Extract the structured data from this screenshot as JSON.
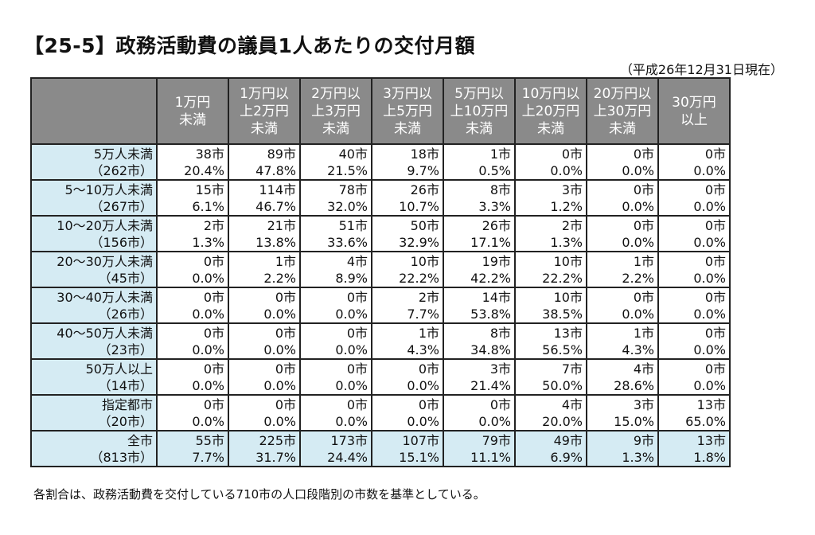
{
  "title": "【25-5】政務活動費の議員1人あたりの交付月額",
  "as_of": "（平成26年12月31日現在）",
  "columns": [
    "1万円\n未満",
    "1万円以\n上2万円\n未満",
    "2万円以\n上3万円\n未満",
    "3万円以\n上5万円\n未満",
    "5万円以\n上10万円\n未満",
    "10万円以\n上20万円\n未満",
    "20万円以\n上30万円\n未満",
    "30万円\n以上"
  ],
  "rows": [
    {
      "label": "5万人未満",
      "sub": "（262市）",
      "counts": [
        "38市",
        "89市",
        "40市",
        "18市",
        "1市",
        "0市",
        "0市",
        "0市"
      ],
      "pcts": [
        "20.4%",
        "47.8%",
        "21.5%",
        "9.7%",
        "0.5%",
        "0.0%",
        "0.0%",
        "0.0%"
      ]
    },
    {
      "label": "5～10万人未満",
      "sub": "（267市）",
      "counts": [
        "15市",
        "114市",
        "78市",
        "26市",
        "8市",
        "3市",
        "0市",
        "0市"
      ],
      "pcts": [
        "6.1%",
        "46.7%",
        "32.0%",
        "10.7%",
        "3.3%",
        "1.2%",
        "0.0%",
        "0.0%"
      ]
    },
    {
      "label": "10～20万人未満",
      "sub": "（156市）",
      "counts": [
        "2市",
        "21市",
        "51市",
        "50市",
        "26市",
        "2市",
        "0市",
        "0市"
      ],
      "pcts": [
        "1.3%",
        "13.8%",
        "33.6%",
        "32.9%",
        "17.1%",
        "1.3%",
        "0.0%",
        "0.0%"
      ]
    },
    {
      "label": "20～30万人未満",
      "sub": "（45市）",
      "counts": [
        "0市",
        "1市",
        "4市",
        "10市",
        "19市",
        "10市",
        "1市",
        "0市"
      ],
      "pcts": [
        "0.0%",
        "2.2%",
        "8.9%",
        "22.2%",
        "42.2%",
        "22.2%",
        "2.2%",
        "0.0%"
      ]
    },
    {
      "label": "30～40万人未満",
      "sub": "（26市）",
      "counts": [
        "0市",
        "0市",
        "0市",
        "2市",
        "14市",
        "10市",
        "0市",
        "0市"
      ],
      "pcts": [
        "0.0%",
        "0.0%",
        "0.0%",
        "7.7%",
        "53.8%",
        "38.5%",
        "0.0%",
        "0.0%"
      ]
    },
    {
      "label": "40～50万人未満",
      "sub": "（23市）",
      "counts": [
        "0市",
        "0市",
        "0市",
        "1市",
        "8市",
        "13市",
        "1市",
        "0市"
      ],
      "pcts": [
        "0.0%",
        "0.0%",
        "0.0%",
        "4.3%",
        "34.8%",
        "56.5%",
        "4.3%",
        "0.0%"
      ]
    },
    {
      "label": "50万人以上",
      "sub": "（14市）",
      "counts": [
        "0市",
        "0市",
        "0市",
        "0市",
        "3市",
        "7市",
        "4市",
        "0市"
      ],
      "pcts": [
        "0.0%",
        "0.0%",
        "0.0%",
        "0.0%",
        "21.4%",
        "50.0%",
        "28.6%",
        "0.0%"
      ]
    },
    {
      "label": "指定都市",
      "sub": "（20市）",
      "counts": [
        "0市",
        "0市",
        "0市",
        "0市",
        "0市",
        "4市",
        "3市",
        "13市"
      ],
      "pcts": [
        "0.0%",
        "0.0%",
        "0.0%",
        "0.0%",
        "0.0%",
        "20.0%",
        "15.0%",
        "65.0%"
      ]
    },
    {
      "label": "全市",
      "sub": "（813市）",
      "counts": [
        "55市",
        "225市",
        "173市",
        "107市",
        "79市",
        "49市",
        "9市",
        "13市"
      ],
      "pcts": [
        "7.7%",
        "31.7%",
        "24.4%",
        "15.1%",
        "11.1%",
        "6.9%",
        "1.3%",
        "1.8%"
      ],
      "total": true
    }
  ],
  "footnote": "各割合は、政務活動費を交付している710市の人口段階別の市数を基準としている。",
  "colors": {
    "header_bg": "#8a8a8a",
    "label_bg": "#d5ebf3"
  }
}
